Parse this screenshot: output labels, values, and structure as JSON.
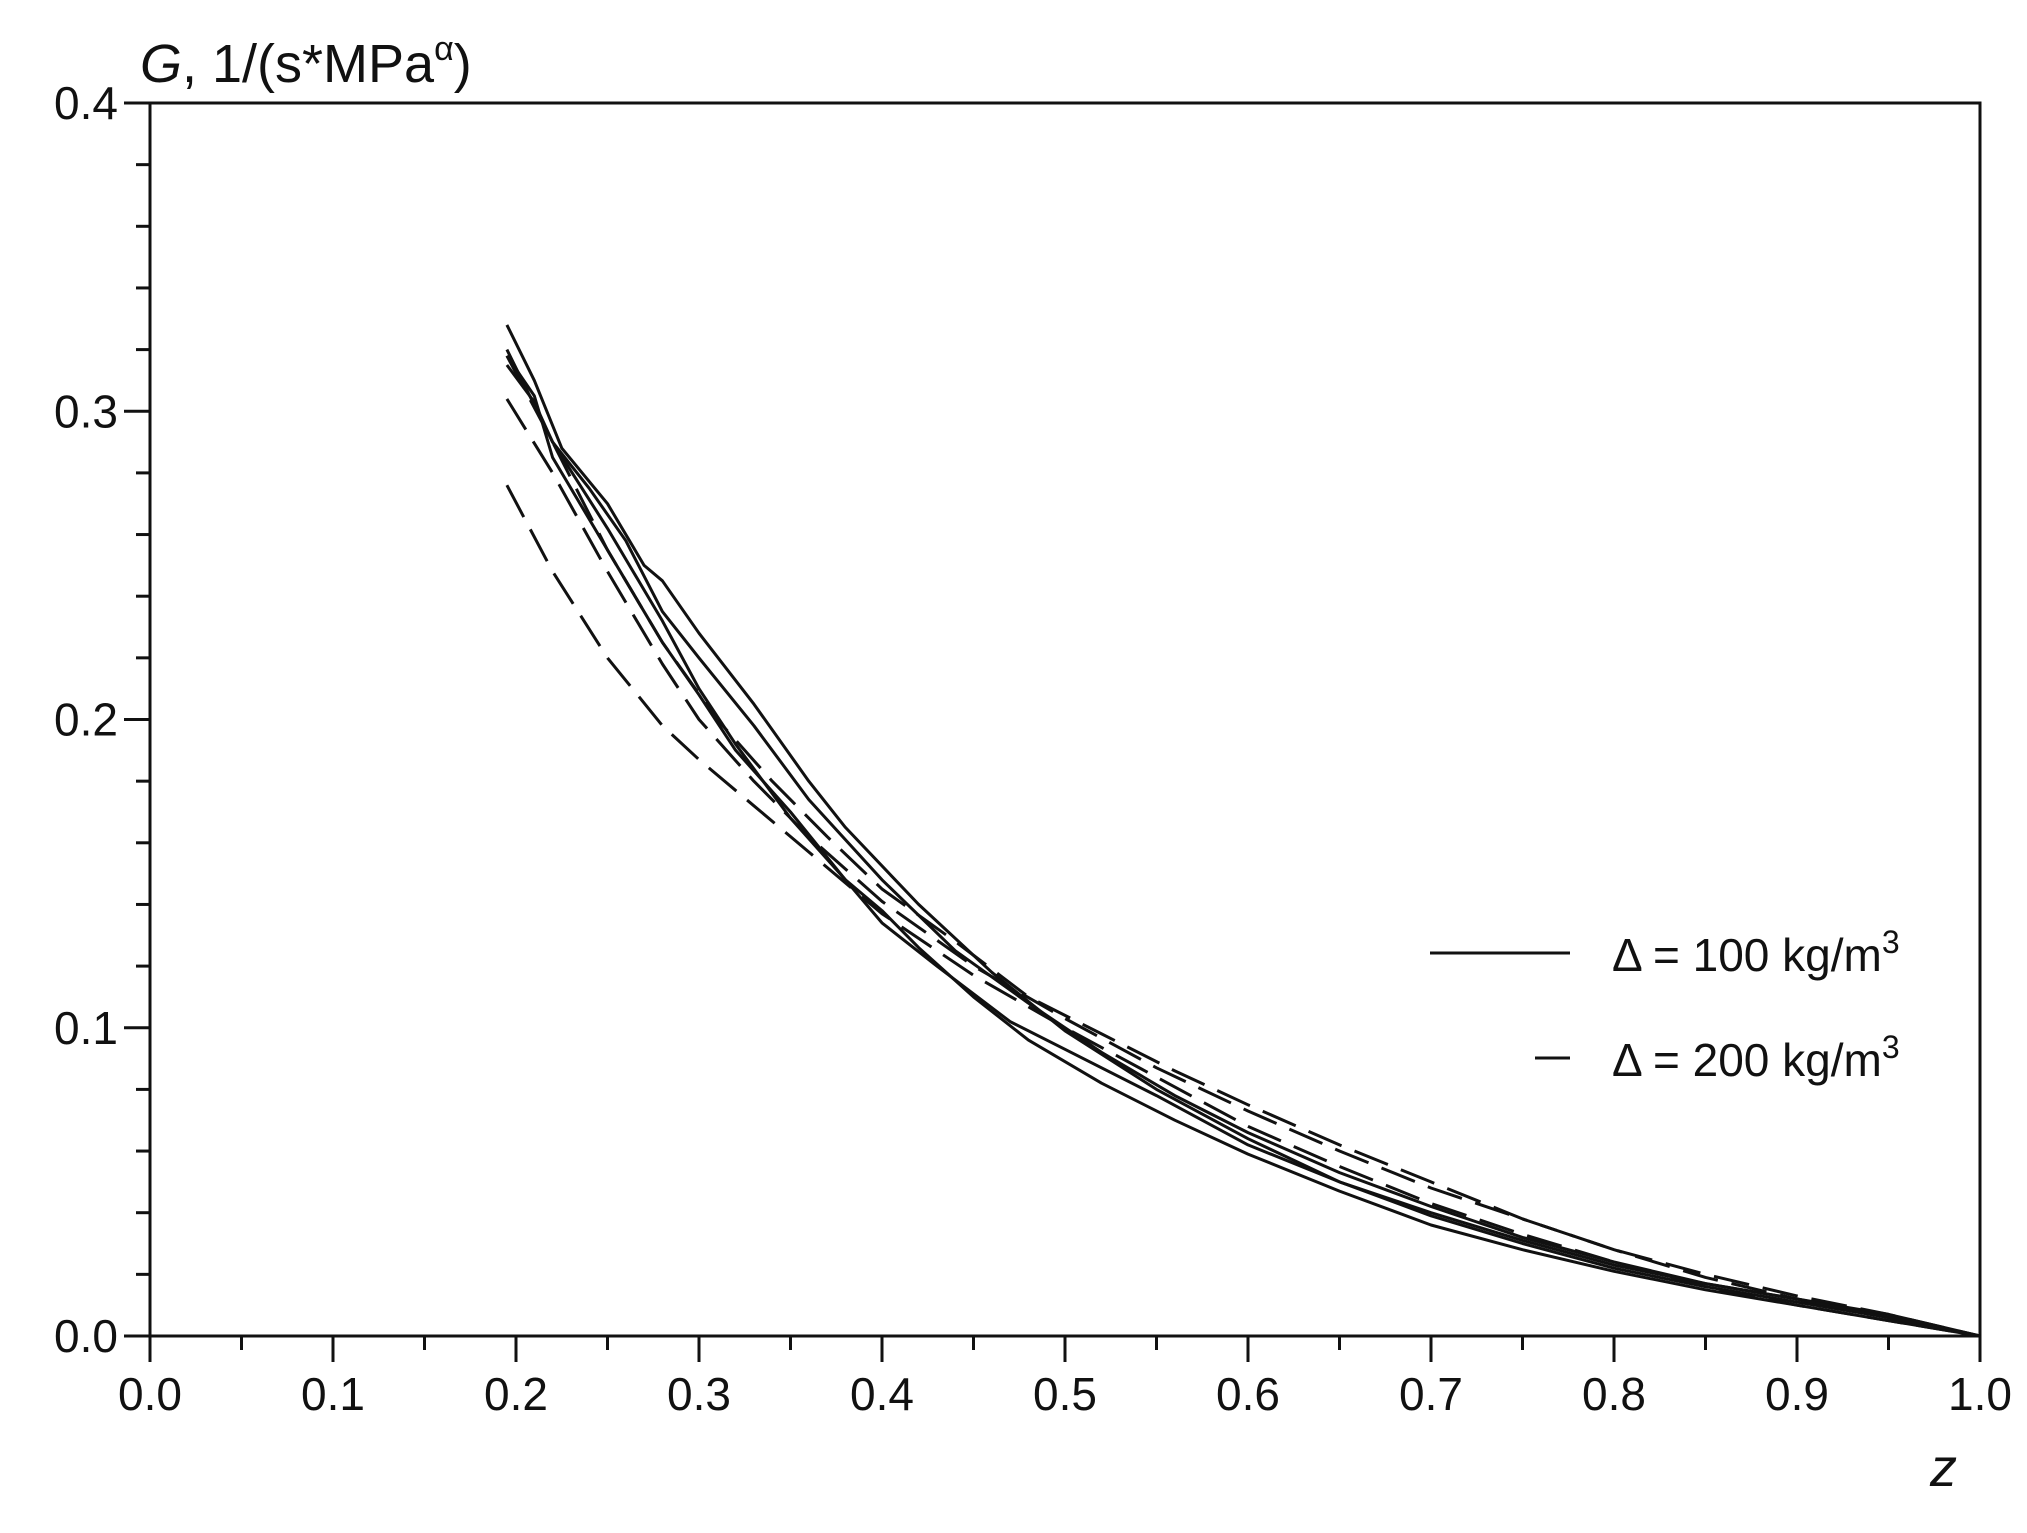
{
  "chart_data": {
    "type": "line",
    "ylabel": {
      "italic": "G",
      "rest": ", 1/(s*MPa",
      "sup": "α",
      "close": ")"
    },
    "xlabel": "z",
    "xlim": [
      0.0,
      1.0
    ],
    "ylim": [
      0.0,
      0.4
    ],
    "x_ticks": [
      "0.0",
      "0.1",
      "0.2",
      "0.3",
      "0.4",
      "0.5",
      "0.6",
      "0.7",
      "0.8",
      "0.9",
      "1.0"
    ],
    "y_ticks": [
      "0.0",
      "0.1",
      "0.2",
      "0.3",
      "0.4"
    ],
    "grid": false,
    "legend": {
      "placement": "right",
      "entries": [
        {
          "label": "Δ = 100 kg/m",
          "sup": "3",
          "style": "solid"
        },
        {
          "label": "Δ = 200 kg/m",
          "sup": "3",
          "style": "dashed"
        }
      ]
    },
    "series": [
      {
        "style": "solid",
        "x": [
          0.195,
          0.21,
          0.225,
          0.25,
          0.27,
          0.28,
          0.3,
          0.33,
          0.36,
          0.38,
          0.42,
          0.46,
          0.5,
          0.55,
          0.6,
          0.65,
          0.7,
          0.75,
          0.8,
          0.85,
          0.9,
          0.95,
          1.0
        ],
        "y": [
          0.328,
          0.31,
          0.288,
          0.27,
          0.25,
          0.245,
          0.228,
          0.205,
          0.18,
          0.165,
          0.14,
          0.118,
          0.099,
          0.08,
          0.064,
          0.05,
          0.039,
          0.03,
          0.022,
          0.016,
          0.011,
          0.006,
          0.0
        ]
      },
      {
        "style": "solid",
        "x": [
          0.195,
          0.21,
          0.22,
          0.24,
          0.26,
          0.28,
          0.3,
          0.33,
          0.36,
          0.4,
          0.44,
          0.48,
          0.52,
          0.56,
          0.6,
          0.65,
          0.7,
          0.75,
          0.8,
          0.85,
          0.9,
          0.95,
          1.0
        ],
        "y": [
          0.315,
          0.303,
          0.29,
          0.275,
          0.258,
          0.235,
          0.22,
          0.198,
          0.174,
          0.148,
          0.125,
          0.108,
          0.092,
          0.078,
          0.066,
          0.053,
          0.042,
          0.032,
          0.024,
          0.017,
          0.012,
          0.007,
          0.0
        ]
      },
      {
        "style": "solid",
        "x": [
          0.195,
          0.21,
          0.22,
          0.24,
          0.26,
          0.28,
          0.3,
          0.32,
          0.35,
          0.38,
          0.4,
          0.42,
          0.45,
          0.48,
          0.52,
          0.56,
          0.6,
          0.65,
          0.7,
          0.75,
          0.8,
          0.85,
          0.9,
          0.95,
          1.0
        ],
        "y": [
          0.318,
          0.305,
          0.285,
          0.265,
          0.245,
          0.225,
          0.208,
          0.19,
          0.17,
          0.148,
          0.138,
          0.126,
          0.11,
          0.096,
          0.082,
          0.07,
          0.059,
          0.047,
          0.036,
          0.028,
          0.021,
          0.015,
          0.01,
          0.005,
          0.0
        ]
      },
      {
        "style": "solid",
        "x": [
          0.195,
          0.22,
          0.25,
          0.28,
          0.3,
          0.32,
          0.35,
          0.38,
          0.4,
          0.43,
          0.47,
          0.5,
          0.55,
          0.6,
          0.65,
          0.7,
          0.75,
          0.8,
          0.85,
          0.9,
          0.95,
          1.0
        ],
        "y": [
          0.32,
          0.29,
          0.262,
          0.232,
          0.21,
          0.192,
          0.168,
          0.148,
          0.134,
          0.12,
          0.102,
          0.093,
          0.078,
          0.062,
          0.05,
          0.04,
          0.031,
          0.023,
          0.017,
          0.012,
          0.006,
          0.0
        ]
      },
      {
        "style": "dashed",
        "x": [
          0.195,
          0.22,
          0.25,
          0.28,
          0.3,
          0.33,
          0.36,
          0.4,
          0.45,
          0.5,
          0.55,
          0.6,
          0.65,
          0.7,
          0.75,
          0.8,
          0.85,
          0.9,
          0.95,
          1.0
        ],
        "y": [
          0.304,
          0.28,
          0.248,
          0.218,
          0.2,
          0.18,
          0.162,
          0.141,
          0.12,
          0.103,
          0.087,
          0.073,
          0.06,
          0.048,
          0.038,
          0.028,
          0.02,
          0.013,
          0.007,
          0.0
        ]
      },
      {
        "style": "dashed",
        "x": [
          0.195,
          0.22,
          0.25,
          0.28,
          0.3,
          0.33,
          0.36,
          0.4,
          0.45,
          0.5,
          0.55,
          0.6,
          0.65,
          0.7,
          0.75,
          0.8,
          0.85,
          0.9,
          0.95,
          1.0
        ],
        "y": [
          0.276,
          0.248,
          0.22,
          0.198,
          0.187,
          0.172,
          0.157,
          0.137,
          0.117,
          0.1,
          0.084,
          0.068,
          0.055,
          0.043,
          0.033,
          0.024,
          0.016,
          0.01,
          0.005,
          0.0
        ]
      },
      {
        "style": "dashed",
        "x": [
          0.195,
          0.22,
          0.25,
          0.28,
          0.31,
          0.34,
          0.37,
          0.4,
          0.44,
          0.48,
          0.52,
          0.56,
          0.6,
          0.65,
          0.7,
          0.75,
          0.8,
          0.85,
          0.9,
          0.95,
          1.0
        ],
        "y": [
          0.318,
          0.29,
          0.255,
          0.225,
          0.2,
          0.18,
          0.162,
          0.145,
          0.128,
          0.11,
          0.098,
          0.086,
          0.075,
          0.062,
          0.05,
          0.038,
          0.028,
          0.019,
          0.012,
          0.006,
          0.0
        ]
      }
    ]
  }
}
